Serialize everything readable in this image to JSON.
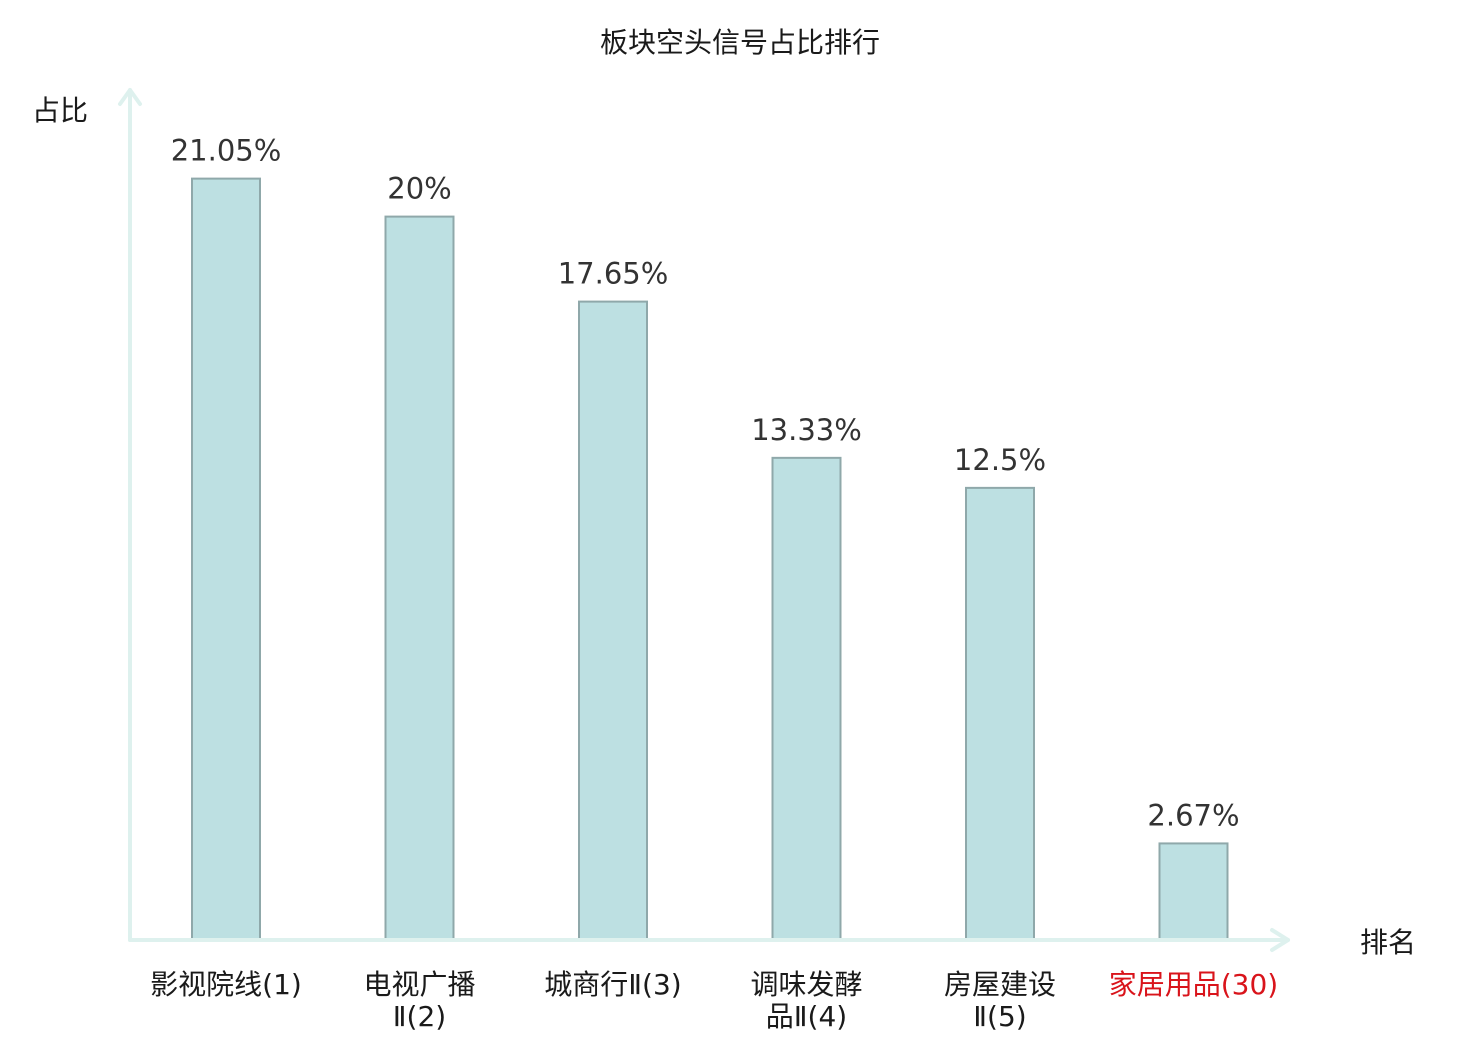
{
  "chart_data": {
    "type": "bar",
    "title": "板块空头信号占比排行",
    "ylabel": "占比",
    "xlabel": "排名",
    "ylim": [
      0,
      23.5
    ],
    "grid": false,
    "legend": "none",
    "categories": [
      {
        "lines": [
          "影视院线(1)"
        ],
        "highlight": false
      },
      {
        "lines": [
          "电视广播",
          "Ⅱ(2)"
        ],
        "highlight": false
      },
      {
        "lines": [
          "城商行Ⅱ(3)"
        ],
        "highlight": false
      },
      {
        "lines": [
          "调味发酵",
          "品Ⅱ(4)"
        ],
        "highlight": false
      },
      {
        "lines": [
          "房屋建设",
          "Ⅱ(5)"
        ],
        "highlight": false
      },
      {
        "lines": [
          "家居用品(30)"
        ],
        "highlight": true
      }
    ],
    "values": [
      21.05,
      20,
      17.65,
      13.33,
      12.5,
      2.67
    ],
    "value_labels": [
      "21.05%",
      "20%",
      "17.65%",
      "13.33%",
      "12.5%",
      "2.67%"
    ],
    "colors": {
      "bar_fill": "#bde0e2",
      "bar_stroke": "#8fa8aa",
      "axis": "#def1ee",
      "highlight_text": "#d9141b",
      "text": "#1a1a1a",
      "value_text": "#333333"
    }
  }
}
